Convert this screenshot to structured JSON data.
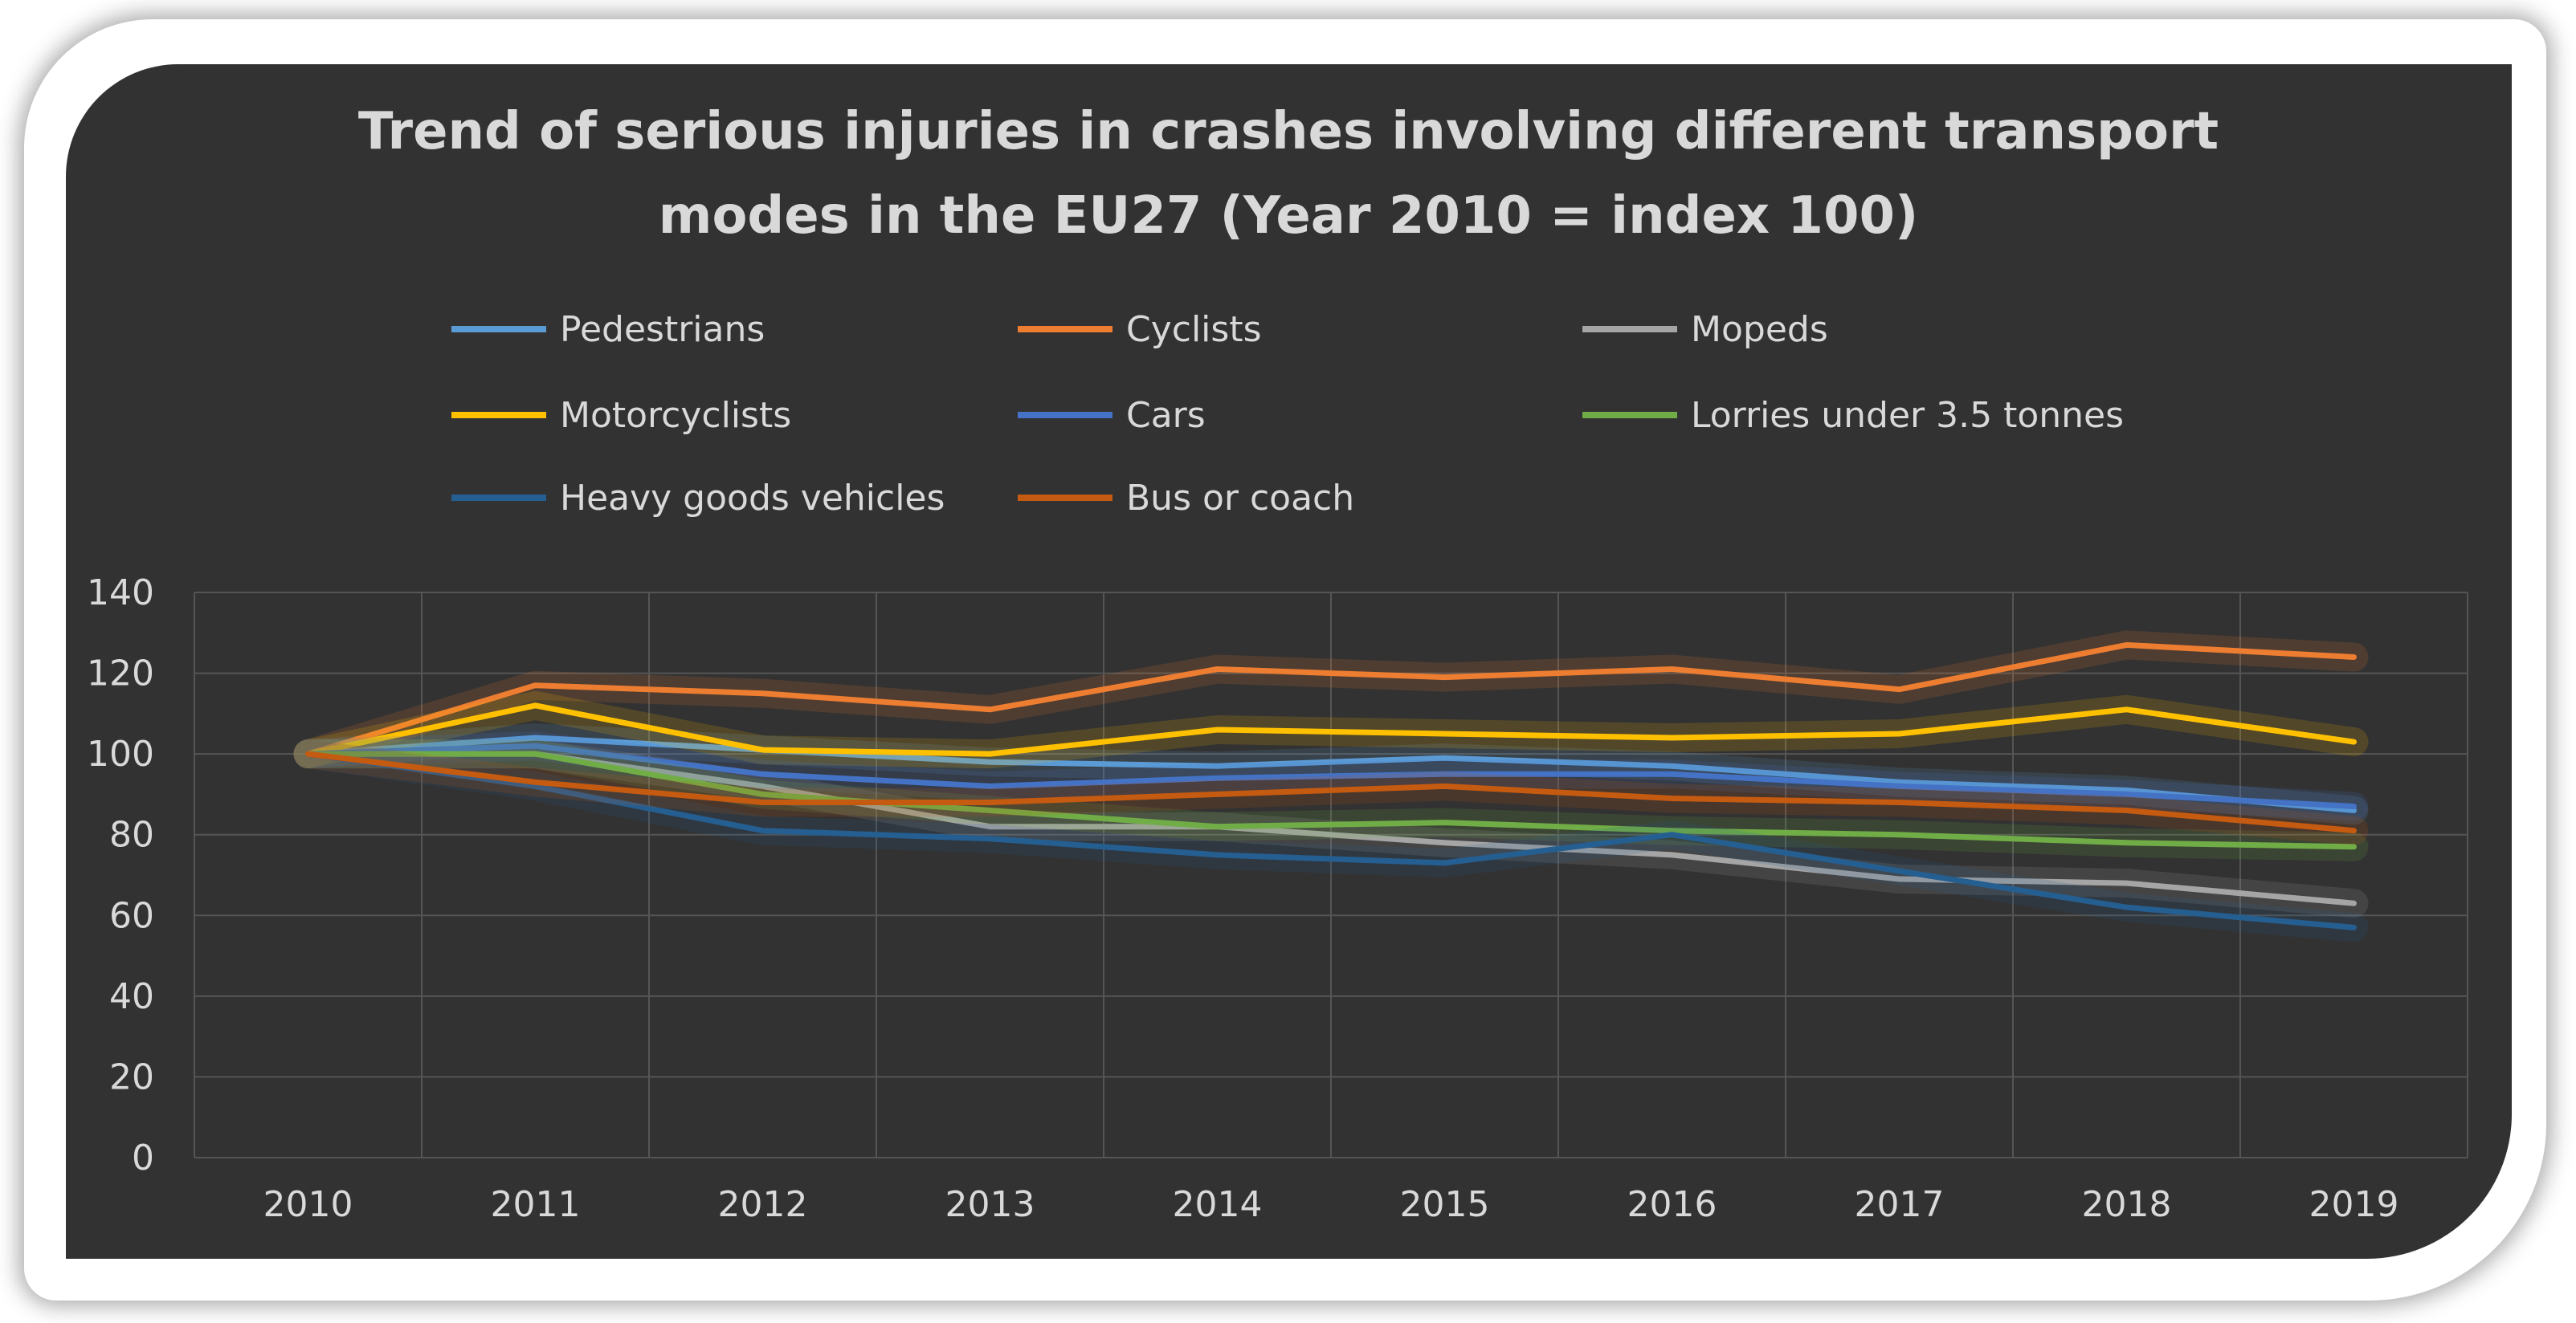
{
  "chart_data": {
    "type": "line",
    "title_lines": [
      "Trend of serious injuries in crashes involving different transport",
      "modes in the EU27  (Year 2010 = index 100)"
    ],
    "categories": [
      "2010",
      "2011",
      "2012",
      "2013",
      "2014",
      "2015",
      "2016",
      "2017",
      "2018",
      "2019"
    ],
    "ylim": [
      0,
      140
    ],
    "yticks": [
      "0",
      "20",
      "40",
      "60",
      "80",
      "100",
      "120",
      "140"
    ],
    "grid": true,
    "legend_position": "top",
    "series": [
      {
        "name": "Pedestrians",
        "color": "#5b9bd5",
        "values": [
          100,
          104,
          101,
          98,
          97,
          99,
          97,
          93,
          91,
          86
        ]
      },
      {
        "name": "Cyclists",
        "color": "#ed7d31",
        "values": [
          100,
          117,
          115,
          111,
          121,
          119,
          121,
          116,
          127,
          124
        ]
      },
      {
        "name": "Mopeds",
        "color": "#a5a5a5",
        "values": [
          100,
          100,
          92,
          82,
          82,
          78,
          75,
          69,
          68,
          63
        ]
      },
      {
        "name": "Motorcyclists",
        "color": "#ffc000",
        "values": [
          100,
          112,
          101,
          100,
          106,
          105,
          104,
          105,
          111,
          103
        ]
      },
      {
        "name": "Cars",
        "color": "#4472c4",
        "values": [
          100,
          102,
          95,
          92,
          94,
          95,
          95,
          92,
          90,
          87
        ]
      },
      {
        "name": "Lorries under 3.5 tonnes",
        "color": "#70ad47",
        "values": [
          100,
          100,
          90,
          86,
          82,
          83,
          81,
          80,
          78,
          77
        ]
      },
      {
        "name": "Heavy goods vehicles",
        "color": "#255e91",
        "values": [
          100,
          92,
          81,
          79,
          75,
          73,
          80,
          71,
          62,
          57
        ]
      },
      {
        "name": "Bus or coach",
        "color": "#c55a11",
        "values": [
          100,
          93,
          88,
          88,
          90,
          92,
          89,
          88,
          86,
          81
        ]
      }
    ]
  }
}
